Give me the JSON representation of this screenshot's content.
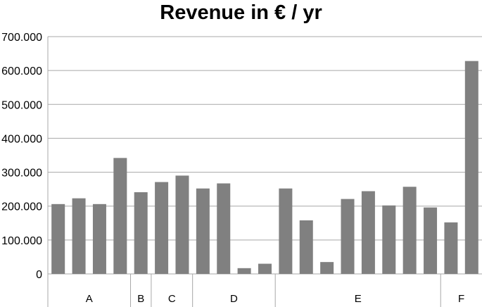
{
  "chart_data": {
    "type": "bar",
    "title": "Revenue in € / yr",
    "xlabel": "",
    "ylabel": "",
    "ylim": [
      0,
      700000
    ],
    "yticks": [
      {
        "value": 0,
        "label": "0"
      },
      {
        "value": 100000,
        "label": "100.000"
      },
      {
        "value": 200000,
        "label": "200.000"
      },
      {
        "value": 300000,
        "label": "300.000"
      },
      {
        "value": 400000,
        "label": "400.000"
      },
      {
        "value": 500000,
        "label": "500.000"
      },
      {
        "value": 600000,
        "label": "600.000"
      },
      {
        "value": 700000,
        "label": "700.000"
      }
    ],
    "grid": true,
    "bar_color": "#808080",
    "groups": [
      {
        "label": "A",
        "values": [
          206000,
          223000,
          206000,
          342000
        ]
      },
      {
        "label": "B",
        "values": [
          241000
        ]
      },
      {
        "label": "C",
        "values": [
          271000,
          290000
        ]
      },
      {
        "label": "D",
        "values": [
          252000,
          267000,
          17000,
          30000
        ]
      },
      {
        "label": "E",
        "values": [
          252000,
          158000,
          35000,
          221000,
          244000,
          202000,
          257000,
          196000
        ]
      },
      {
        "label": "F",
        "values": [
          152000,
          628000
        ]
      }
    ]
  }
}
